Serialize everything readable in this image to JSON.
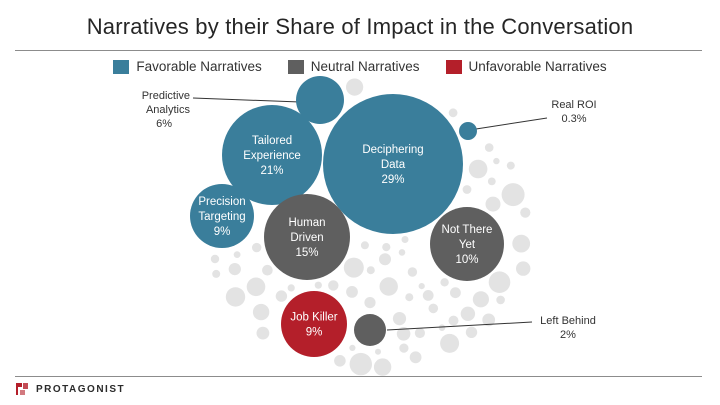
{
  "title": "Narratives by their Share of Impact in the Conversation",
  "legend": [
    {
      "label": "Favorable Narratives",
      "color": "#3a7e9b"
    },
    {
      "label": "Neutral Narratives",
      "color": "#5f5f5f"
    },
    {
      "label": "Unfavorable Narratives",
      "color": "#b41f2a"
    }
  ],
  "chart_data": {
    "type": "bubble",
    "title": "Narratives by their Share of Impact in the Conversation",
    "series": [
      {
        "name": "Favorable Narratives",
        "points": [
          {
            "label": "Deciphering Data",
            "value": 29
          },
          {
            "label": "Tailored Experience",
            "value": 21
          },
          {
            "label": "Precision Targeting",
            "value": 9
          },
          {
            "label": "Predictive Analytics",
            "value": 6
          },
          {
            "label": "Real ROI",
            "value": 0.3
          }
        ]
      },
      {
        "name": "Neutral Narratives",
        "points": [
          {
            "label": "Human Driven",
            "value": 15
          },
          {
            "label": "Not There Yet",
            "value": 10
          },
          {
            "label": "Left Behind",
            "value": 2
          }
        ]
      },
      {
        "name": "Unfavorable Narratives",
        "points": [
          {
            "label": "Job Killer",
            "value": 9
          }
        ]
      }
    ]
  },
  "bubbles": [
    {
      "lines": [
        "Deciphering",
        "Data",
        "29%"
      ],
      "value": 29,
      "group": "favorable"
    },
    {
      "lines": [
        "Tailored",
        "Experience",
        "21%"
      ],
      "value": 21,
      "group": "favorable"
    },
    {
      "lines": [
        "Precision",
        "Targeting",
        "9%"
      ],
      "value": 9,
      "group": "favorable"
    },
    {
      "lines": [],
      "value": 6,
      "group": "favorable"
    },
    {
      "lines": [],
      "value": 0.3,
      "group": "favorable"
    },
    {
      "lines": [
        "Human",
        "Driven",
        "15%"
      ],
      "value": 15,
      "group": "neutral"
    },
    {
      "lines": [
        "Not There",
        "Yet",
        "10%"
      ],
      "value": 10,
      "group": "neutral"
    },
    {
      "lines": [],
      "value": 2,
      "group": "neutral"
    },
    {
      "lines": [
        "Job Killer",
        "9%"
      ],
      "value": 9,
      "group": "unfavorable"
    }
  ],
  "callouts": {
    "predictive": {
      "name": "Predictive",
      "name2": "Analytics",
      "pct": "6%"
    },
    "real_roi": {
      "name": "Real ROI",
      "pct": "0.3%"
    },
    "left_behind": {
      "name": "Left Behind",
      "pct": "2%"
    }
  },
  "colors": {
    "favorable": "#3a7e9b",
    "neutral": "#5f5f5f",
    "unfavorable": "#b41f2a",
    "background_dots": "#e3e3e3"
  },
  "brand": {
    "name": "PROTAGONIST"
  }
}
